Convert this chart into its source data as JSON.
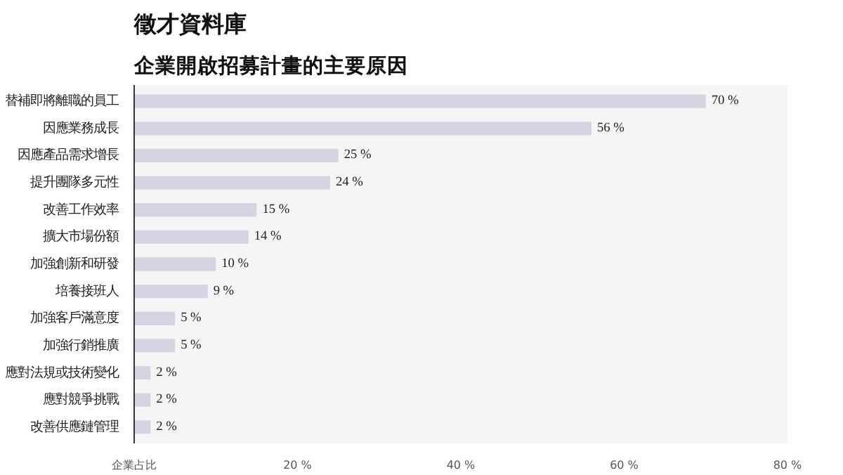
{
  "chart_data": {
    "type": "bar",
    "orientation": "horizontal",
    "title": "徵才資料庫",
    "subtitle": "企業開啟招募計畫的主要原因",
    "categories": [
      "替補即將離職的員工",
      "因應業務成長",
      "因應產品需求增長",
      "提升團隊多元性",
      "改善工作效率",
      "擴大市場份額",
      "加強創新和研發",
      "培養接班人",
      "加強客戶滿意度",
      "加強行銷推廣",
      "應對法規或技術變化",
      "應對競爭挑戰",
      "改善供應鏈管理"
    ],
    "values": [
      70,
      56,
      25,
      24,
      15,
      14,
      10,
      9,
      5,
      5,
      2,
      2,
      2
    ],
    "value_labels": [
      "70 %",
      "56 %",
      "25 %",
      "24 %",
      "15 %",
      "14 %",
      "10 %",
      "9 %",
      "5 %",
      "5 %",
      "2 %",
      "2 %",
      "2 %"
    ],
    "color": "#d5d4e2",
    "xlim": [
      0,
      80
    ],
    "xticks": [
      {
        "value": 0,
        "label": "企業占比"
      },
      {
        "value": 20,
        "label": "20 %"
      },
      {
        "value": 40,
        "label": "40 %"
      },
      {
        "value": 60,
        "label": "60 %"
      },
      {
        "value": 80,
        "label": "80 %"
      }
    ],
    "grid": false
  }
}
